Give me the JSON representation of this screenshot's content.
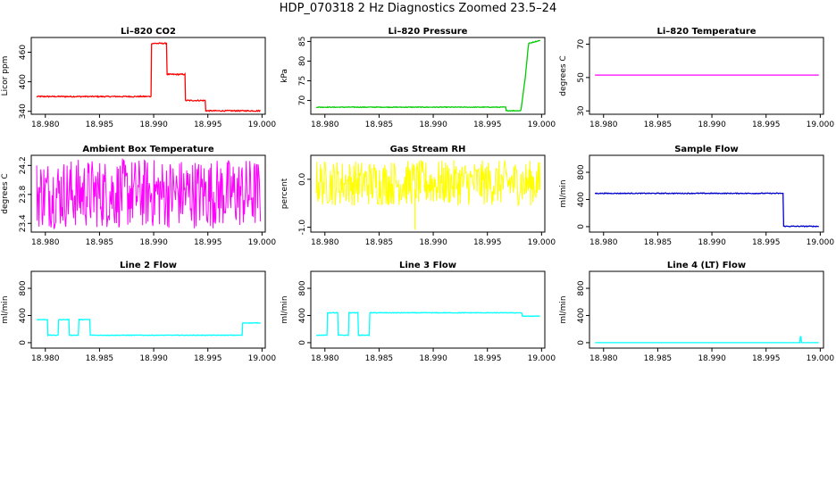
{
  "title": "HDP_070318  2 Hz Diagnostics Zoomed 23.5–24",
  "chart_data": [
    {
      "type": "line",
      "title": "Li–820 CO2",
      "ylabel": "Licor ppm",
      "color": "#ff0000",
      "xlim": [
        18.9787,
        19.0003
      ],
      "ylim": [
        334,
        490
      ],
      "xticks": [
        "18.980",
        "18.985",
        "18.990",
        "18.995",
        "19.000"
      ],
      "xtick_values": [
        18.98,
        18.985,
        18.99,
        18.995,
        19.0
      ],
      "yticks": [
        "340",
        "400",
        "460"
      ],
      "ytick_values": [
        340,
        400,
        460
      ],
      "noise": 1.2,
      "segments": [
        [
          18.9792,
          18.9898,
          370
        ],
        [
          18.9898,
          18.9912,
          478
        ],
        [
          18.9912,
          18.9929,
          415
        ],
        [
          18.9929,
          18.9948,
          362
        ],
        [
          18.9948,
          18.9999,
          341
        ]
      ]
    },
    {
      "type": "line",
      "title": "Li–820 Pressure",
      "ylabel": "kPa",
      "color": "#00cc00",
      "xlim": [
        18.9787,
        19.0003
      ],
      "ylim": [
        66.5,
        86
      ],
      "xticks": [
        "18.980",
        "18.985",
        "18.990",
        "18.995",
        "19.000"
      ],
      "xtick_values": [
        18.98,
        18.985,
        18.99,
        18.995,
        19.0
      ],
      "yticks": [
        "70",
        "75",
        "80",
        "85"
      ],
      "ytick_values": [
        70,
        75,
        80,
        85
      ],
      "noise": 0.08,
      "segments": [
        [
          18.9792,
          18.9967,
          68.3
        ],
        [
          18.9967,
          18.9981,
          67.4
        ]
      ],
      "ramp": [
        [
          18.9981,
          67.6
        ],
        [
          18.9985,
          76
        ],
        [
          18.9988,
          84.5
        ],
        [
          18.9999,
          85.3
        ]
      ]
    },
    {
      "type": "line",
      "title": "Li–820 Temperature",
      "ylabel": "degrees C",
      "color": "#ff00ff",
      "xlim": [
        18.9787,
        19.0003
      ],
      "ylim": [
        28,
        74
      ],
      "xticks": [
        "18.980",
        "18.985",
        "18.990",
        "18.995",
        "19.000"
      ],
      "xtick_values": [
        18.98,
        18.985,
        18.99,
        18.995,
        19.0
      ],
      "yticks": [
        "30",
        "50",
        "70"
      ],
      "ytick_values": [
        30,
        50,
        70
      ],
      "noise": 0,
      "segments": [
        [
          18.9792,
          18.9999,
          51.5
        ]
      ]
    },
    {
      "type": "line",
      "title": "Ambient Box Temperature",
      "ylabel": "degrees C",
      "color": "#ff00ff",
      "xlim": [
        18.9787,
        19.0003
      ],
      "ylim": [
        23.28,
        24.34
      ],
      "xticks": [
        "18.980",
        "18.985",
        "18.990",
        "18.995",
        "19.000"
      ],
      "xtick_values": [
        18.98,
        18.985,
        18.99,
        18.995,
        19.0
      ],
      "yticks": [
        "23.4",
        "23.8",
        "24.2"
      ],
      "ytick_values": [
        23.4,
        23.8,
        24.2
      ],
      "noise_band": [
        23.33,
        24.3
      ],
      "center": 23.8,
      "segments": [
        [
          18.9792,
          18.9999,
          23.8
        ]
      ]
    },
    {
      "type": "line",
      "title": "Gas Stream RH",
      "ylabel": "percent",
      "color": "#ffff00",
      "xlim": [
        18.9787,
        19.0003
      ],
      "ylim": [
        -1.1,
        0.5
      ],
      "xticks": [
        "18.980",
        "18.985",
        "18.990",
        "18.995",
        "19.000"
      ],
      "xtick_values": [
        18.98,
        18.985,
        18.99,
        18.995,
        19.0
      ],
      "yticks": [
        "-1.0",
        "0.0"
      ],
      "ytick_values": [
        -1.0,
        0.0
      ],
      "noise_band": [
        -0.55,
        0.4
      ],
      "center": -0.1,
      "segments": [
        [
          18.9792,
          18.9999,
          -0.1
        ]
      ]
    },
    {
      "type": "line",
      "title": "Sample Flow",
      "ylabel": "ml/min",
      "color": "#0000cc",
      "xlim": [
        18.9787,
        19.0003
      ],
      "ylim": [
        -80,
        1050
      ],
      "xticks": [
        "18.980",
        "18.985",
        "18.990",
        "18.995",
        "19.000"
      ],
      "xtick_values": [
        18.98,
        18.985,
        18.99,
        18.995,
        19.0
      ],
      "yticks": [
        "0",
        "400",
        "800"
      ],
      "ytick_values": [
        0,
        400,
        800
      ],
      "noise": 6,
      "segments": [
        [
          18.9792,
          18.9966,
          490
        ],
        [
          18.9966,
          18.9999,
          5
        ]
      ]
    },
    {
      "type": "line",
      "title": "Line 2 Flow",
      "ylabel": "ml/min",
      "color": "#00ffff",
      "xlim": [
        18.9787,
        19.0003
      ],
      "ylim": [
        -80,
        1050
      ],
      "xticks": [
        "18.980",
        "18.985",
        "18.990",
        "18.995",
        "19.000"
      ],
      "xtick_values": [
        18.98,
        18.985,
        18.99,
        18.995,
        19.0
      ],
      "yticks": [
        "0",
        "400",
        "800"
      ],
      "ytick_values": [
        0,
        400,
        800
      ],
      "noise": 4,
      "segments": [
        [
          18.9792,
          18.9802,
          340
        ],
        [
          18.9802,
          18.9812,
          110
        ],
        [
          18.9812,
          18.9822,
          340
        ],
        [
          18.9822,
          18.9831,
          110
        ],
        [
          18.9831,
          18.9841,
          340
        ],
        [
          18.9841,
          18.988,
          110
        ],
        [
          18.988,
          18.9982,
          110
        ],
        [
          18.9982,
          18.9999,
          290
        ]
      ]
    },
    {
      "type": "line",
      "title": "Line 3 Flow",
      "ylabel": "ml/min",
      "color": "#00ffff",
      "xlim": [
        18.9787,
        19.0003
      ],
      "ylim": [
        -80,
        1050
      ],
      "xticks": [
        "18.980",
        "18.985",
        "18.990",
        "18.995",
        "19.000"
      ],
      "xtick_values": [
        18.98,
        18.985,
        18.99,
        18.995,
        19.0
      ],
      "yticks": [
        "0",
        "400",
        "800"
      ],
      "ytick_values": [
        0,
        400,
        800
      ],
      "noise": 4,
      "segments": [
        [
          18.9792,
          18.9802,
          110
        ],
        [
          18.9802,
          18.9812,
          440
        ],
        [
          18.9812,
          18.9822,
          110
        ],
        [
          18.9822,
          18.9831,
          440
        ],
        [
          18.9831,
          18.9841,
          110
        ],
        [
          18.9841,
          18.9982,
          440
        ],
        [
          18.9982,
          18.9999,
          390
        ]
      ]
    },
    {
      "type": "line",
      "title": "Line 4 (LT) Flow",
      "ylabel": "ml/min",
      "color": "#00ffff",
      "xlim": [
        18.9787,
        19.0003
      ],
      "ylim": [
        -80,
        1050
      ],
      "xticks": [
        "18.980",
        "18.985",
        "18.990",
        "18.995",
        "19.000"
      ],
      "xtick_values": [
        18.98,
        18.985,
        18.99,
        18.995,
        19.0
      ],
      "yticks": [
        "0",
        "400",
        "800"
      ],
      "ytick_values": [
        0,
        400,
        800
      ],
      "noise": 0,
      "segments": [
        [
          18.9792,
          18.9999,
          0
        ]
      ],
      "spike": [
        18.9982,
        90
      ]
    }
  ]
}
